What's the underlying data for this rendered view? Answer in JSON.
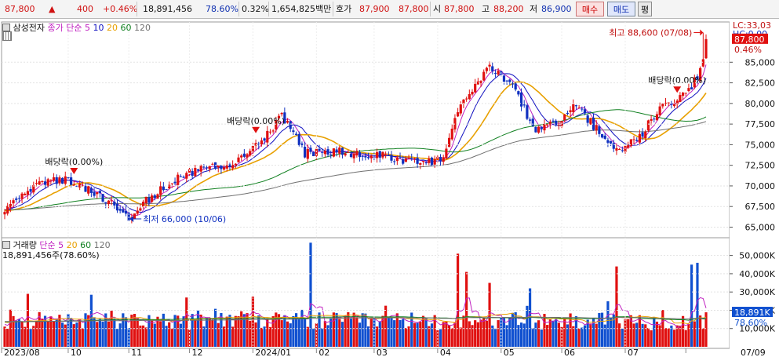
{
  "topbar": {
    "price": "87,800",
    "change_arrow": "▲",
    "change": "400",
    "change_pct": "+0.46%",
    "volume": "18,891,456",
    "volume_ratio": "78.60%",
    "turnover_pct": "0.32%",
    "trade_amount": "1,654,825백만",
    "ask_label": "호가",
    "ask_price": "87,900",
    "bid_price": "87,800",
    "open_label": "시",
    "open": "87,800",
    "high_label": "고",
    "high": "88,200",
    "low_label": "저",
    "low": "86,900",
    "buy_button": "매수",
    "sell_button": "매도",
    "eval_button": "평"
  },
  "price_panel": {
    "stock_name": "삼성전자",
    "ma_label": "종가 단순",
    "ma_periods": [
      "5",
      "10",
      "20",
      "60",
      "120"
    ],
    "ma_colors": [
      "#c020c0",
      "#1010c0",
      "#e8a000",
      "#108020",
      "#707070"
    ],
    "lc_label": "LC:33,03",
    "hc_label": "HC:0,00",
    "current_price_tag": "87,800",
    "current_pct_tag": "0.46%",
    "high_annotation": "최고 88,600 (07/08)",
    "low_annotation": "최저 66,000 (10/06)",
    "dividend_label": "배당락(0.00%)",
    "dividend_label_b": "배당락(0.00%)",
    "dividend_label_c": "배당락(0.00%)"
  },
  "volume_panel": {
    "title": "거래량",
    "ma_label": "단순",
    "ma_periods": [
      "5",
      "20",
      "60",
      "120"
    ],
    "ma_colors": [
      "#c020c0",
      "#e8a000",
      "#108020",
      "#707070"
    ],
    "current_volume_text": "18,891,456주(78.60%)",
    "current_volume_tag": "18,891K",
    "current_volume_pct": "78.60%"
  },
  "chart_data": [
    {
      "type": "candlestick",
      "title": "삼성전자",
      "y_ticks": [
        65000,
        67500,
        70000,
        72500,
        75000,
        77500,
        80000,
        82500,
        85000
      ],
      "y_tick_labels": [
        "65,000",
        "67,500",
        "70,000",
        "72,500",
        "75,000",
        "77,500",
        "80,000",
        "82,500",
        "85,000"
      ],
      "ylim": [
        64000,
        89500
      ],
      "x_labels": [
        "2023/08",
        "10",
        "11",
        "12",
        "2024/01",
        "02",
        "03",
        "04",
        "05",
        "06",
        "07",
        "07/09"
      ],
      "anchors": [
        {
          "i": 0,
          "close": 67000
        },
        {
          "i": 12,
          "close": 70500
        },
        {
          "i": 22,
          "close": 70800
        },
        {
          "i": 30,
          "close": 69500
        },
        {
          "i": 38,
          "close": 67500
        },
        {
          "i": 43,
          "close": 66200
        },
        {
          "i": 50,
          "close": 68500
        },
        {
          "i": 60,
          "close": 71000
        },
        {
          "i": 68,
          "close": 72000
        },
        {
          "i": 80,
          "close": 72600
        },
        {
          "i": 90,
          "close": 76000
        },
        {
          "i": 96,
          "close": 78500
        },
        {
          "i": 104,
          "close": 74000
        },
        {
          "i": 114,
          "close": 74200
        },
        {
          "i": 124,
          "close": 73800
        },
        {
          "i": 134,
          "close": 73500
        },
        {
          "i": 146,
          "close": 72700
        },
        {
          "i": 152,
          "close": 73400
        },
        {
          "i": 158,
          "close": 80000
        },
        {
          "i": 168,
          "close": 84500
        },
        {
          "i": 176,
          "close": 82000
        },
        {
          "i": 184,
          "close": 76500
        },
        {
          "i": 192,
          "close": 77800
        },
        {
          "i": 198,
          "close": 79800
        },
        {
          "i": 206,
          "close": 76500
        },
        {
          "i": 212,
          "close": 74300
        },
        {
          "i": 220,
          "close": 76000
        },
        {
          "i": 228,
          "close": 79800
        },
        {
          "i": 236,
          "close": 81000
        },
        {
          "i": 241,
          "close": 84000
        },
        {
          "i": 243,
          "close": 87800
        }
      ],
      "high_point": {
        "date": "07/08",
        "value": 88600
      },
      "low_point": {
        "date": "10/06",
        "value": 66000
      },
      "last_close": 87800
    },
    {
      "type": "bar",
      "title": "거래량",
      "y_ticks": [
        10000,
        20000,
        30000,
        40000,
        50000
      ],
      "y_tick_labels": [
        "10,000K",
        "20,000K",
        "30,000K",
        "40,000K",
        "50,000K"
      ],
      "ylim": [
        0,
        58000
      ],
      "unit": "K shares",
      "spikes": [
        {
          "i": 8,
          "value": 29000
        },
        {
          "i": 30,
          "value": 28500
        },
        {
          "i": 63,
          "value": 27000
        },
        {
          "i": 86,
          "value": 27500
        },
        {
          "i": 106,
          "value": 57000
        },
        {
          "i": 157,
          "value": 51000
        },
        {
          "i": 160,
          "value": 41000
        },
        {
          "i": 168,
          "value": 35000
        },
        {
          "i": 182,
          "value": 32000
        },
        {
          "i": 212,
          "value": 44000
        },
        {
          "i": 238,
          "value": 45000
        },
        {
          "i": 240,
          "value": 46000
        }
      ],
      "last_value": 18891
    }
  ]
}
